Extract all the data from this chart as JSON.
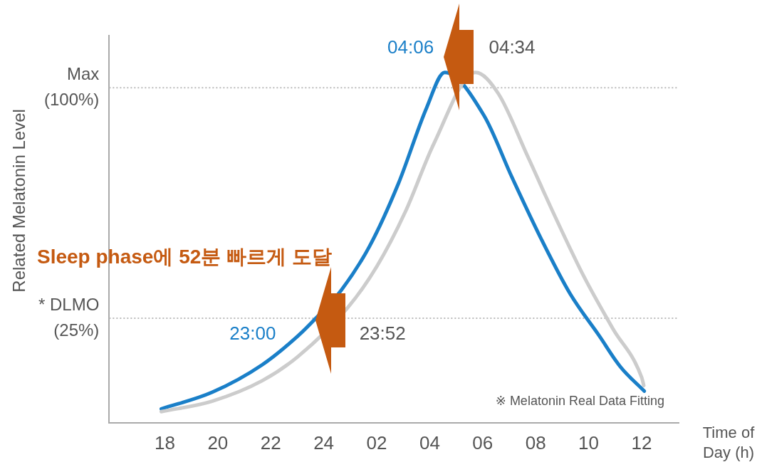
{
  "chart_data": {
    "type": "line",
    "xlabel": "Time of\nDay (h)",
    "ylabel": "Related Melatonin Level",
    "xlim": [
      "--01-01T15:54",
      "--01-02T13:24"
    ],
    "ylim": [
      -9,
      117
    ],
    "xticks": [
      {
        "value": "--01-01T18:00",
        "label": "18"
      },
      {
        "value": "--01-01T20:00",
        "label": "20"
      },
      {
        "value": "--01-01T22:00",
        "label": "22"
      },
      {
        "value": "--01-02T00:00",
        "label": "24"
      },
      {
        "value": "--01-02T02:00",
        "label": "02"
      },
      {
        "value": "--01-02T04:00",
        "label": "04"
      },
      {
        "value": "--01-02T06:00",
        "label": "06"
      },
      {
        "value": "--01-02T08:00",
        "label": "08"
      },
      {
        "value": "--01-02T10:00",
        "label": "10"
      },
      {
        "value": "--01-02T12:00",
        "label": "12"
      }
    ],
    "yticks": [
      {
        "value": 25,
        "label": "* DLMO\n(25%)"
      },
      {
        "value": 100,
        "label": "Max\n(100%)"
      }
    ],
    "grid": false,
    "legend": false,
    "marker": "none",
    "line_style": "solid",
    "series": [
      {
        "color": "#cccccc",
        "x": [
          "--01-01T17:52",
          "--01-01T19:47",
          "--01-01T21:41",
          "--01-01T23:02",
          "--01-02T00:23",
          "--01-02T00:54",
          "--01-02T02:00",
          "--01-02T03:05",
          "--01-02T04:10",
          "--01-02T04:58",
          "--01-02T05:44",
          "--01-02T06:36",
          "--01-02T07:41",
          "--01-02T08:46",
          "--01-02T09:50",
          "--01-02T10:55",
          "--01-02T12:00",
          "--01-02T12:05"
        ],
        "values": [
          -5.4,
          -2,
          4.7,
          12.6,
          null,
          28.4,
          41.8,
          59.7,
          82,
          null,
          105,
          98,
          78,
          57.5,
          38.4,
          21.6,
          5.8,
          3.1
        ]
      },
      {
        "color": "#1a7fc8",
        "x": [
          "--01-01T17:52",
          "--01-01T19:47",
          "--01-01T21:41",
          "--01-01T23:02",
          "--01-01T23:42",
          "--01-02T00:39",
          "--01-02T01:44",
          "--01-02T02:49",
          "--01-02T03:53",
          "--01-02T04:34",
          "--01-02T05:06",
          "--01-02T06:03",
          "--01-02T07:06",
          "--01-02T08:12",
          "--01-02T09:18",
          "--01-02T10:24",
          "--01-02T11:12",
          "--01-02T12:06"
        ],
        "values": [
          -4.5,
          0.9,
          9.9,
          19.3,
          25,
          34,
          48.5,
          68.8,
          93.5,
          105,
          null,
          91,
          71,
          51,
          33,
          19.3,
          9.2,
          1.3
        ]
      }
    ],
    "ref_lines": [
      {
        "axis": "y",
        "value": 100,
        "color": "#bbbbbb",
        "line_style": "dotted"
      },
      {
        "axis": "y",
        "value": 25,
        "color": "#bbbbbb",
        "line_style": "dotted"
      }
    ],
    "annotations": [
      "Sleep phase에 52분 빠르게 도달",
      "※ Melatonin Real Data Fitting",
      {
        "text": "04:06",
        "x": "--01-02T04:06",
        "y": 100
      },
      {
        "text": "04:34",
        "x": "--01-02T04:34",
        "y": 100
      },
      {
        "text": "23:00",
        "x": "--01-01T23:00",
        "y": 25
      },
      {
        "text": "23:52",
        "x": "--01-01T23:52",
        "y": 25
      }
    ]
  }
}
